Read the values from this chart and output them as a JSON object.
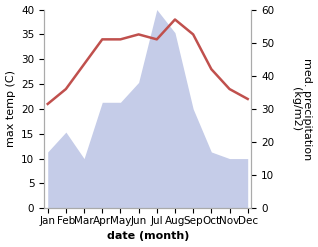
{
  "months": [
    "Jan",
    "Feb",
    "Mar",
    "Apr",
    "May",
    "Jun",
    "Jul",
    "Aug",
    "Sep",
    "Oct",
    "Nov",
    "Dec"
  ],
  "temperature": [
    21,
    24,
    29,
    34,
    34,
    35,
    34,
    38,
    35,
    28,
    24,
    22
  ],
  "precipitation": [
    17,
    23,
    15,
    32,
    32,
    38,
    60,
    53,
    30,
    17,
    15,
    15
  ],
  "temp_color": "#c0504d",
  "precip_fill_color": "#c5cce8",
  "temp_ylim": [
    0,
    40
  ],
  "precip_ylim": [
    0,
    60
  ],
  "xlabel": "date (month)",
  "ylabel_left": "max temp (C)",
  "ylabel_right": "med. precipitation\n(kg/m2)",
  "temp_linewidth": 1.8,
  "xlabel_fontsize": 8,
  "ylabel_fontsize": 8,
  "tick_fontsize": 7.5
}
